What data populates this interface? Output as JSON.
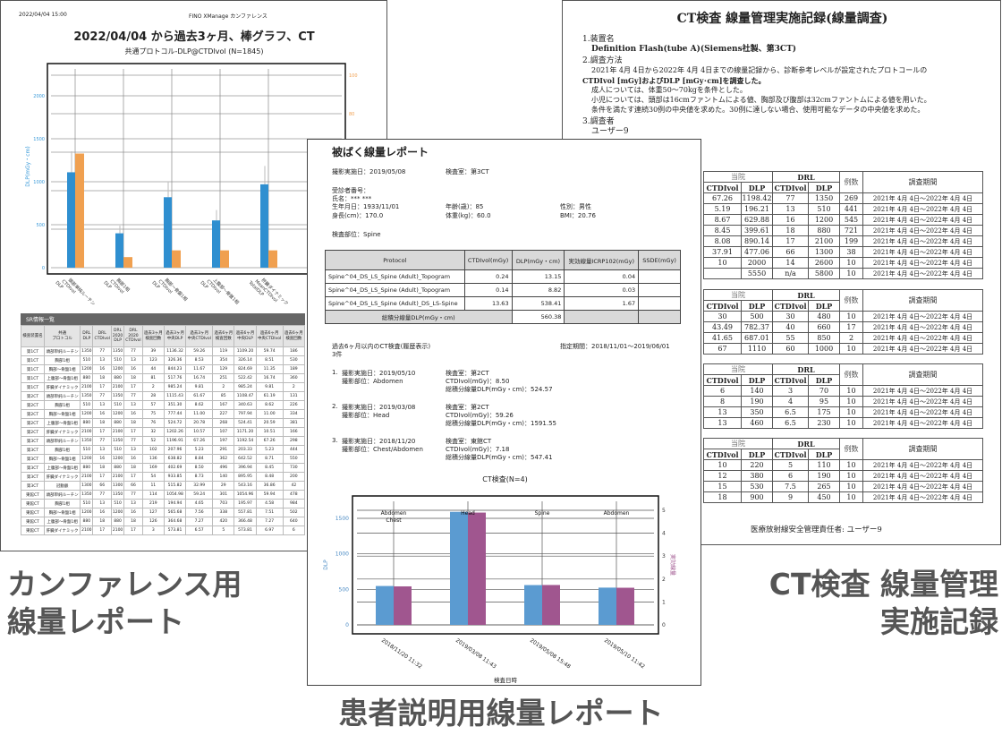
{
  "captions": {
    "left": [
      "カンファレンス用",
      "線量レポート"
    ],
    "right": [
      "CT検査 線量管理",
      "実施記録"
    ],
    "center": "患者説明用線量レポート"
  },
  "conference": {
    "timestamp": "2022/04/04 15:00",
    "app": "FINO XManage カンファレンス",
    "title": "2022/04/04 から過去3ヶ月、棒グラフ、CT",
    "subtitle": "共通プロトコル-DLP@CTDIvol (N=1845)",
    "sr_title": "SR情報一覧",
    "table_headers": [
      "検査装置名",
      "共通\nプロトコル",
      "DRL\nDLP",
      "DRL\nCTDIvol",
      "DRL\n2020\nDLP",
      "DRL\n2020\nCTDIvol",
      "過去3ヶ月\n検査回数",
      "過去3ヶ月\n中央DLP",
      "過去3ヶ月\n中央CTDIvol",
      "過去6ヶ月\n検査回数",
      "過去6ヶ月\n中央DLP",
      "過去6ヶ月\n中央CTDIvol",
      "過去6ヶ月\n検査回数"
    ],
    "table_rows": [
      [
        "第1CT",
        "頭部単純ルーチン",
        "1350",
        "77",
        "1350",
        "77",
        "39",
        "1136.32",
        "59.26",
        "119",
        "1109.20",
        "59.74",
        "186"
      ],
      [
        "第1CT",
        "胸部1相",
        "510",
        "13",
        "510",
        "13",
        "123",
        "326.36",
        "8.53",
        "354",
        "326.14",
        "8.51",
        "530"
      ],
      [
        "第1CT",
        "胸部〜骨盤1相",
        "1200",
        "16",
        "1200",
        "16",
        "44",
        "844.23",
        "11.67",
        "129",
        "824.69",
        "11.35",
        "189"
      ],
      [
        "第1CT",
        "上腹部〜骨盤1相",
        "880",
        "18",
        "880",
        "18",
        "81",
        "517.76",
        "16.74",
        "251",
        "522.42",
        "16.74",
        "360"
      ],
      [
        "第1CT",
        "肝臓ダイナミック",
        "2100",
        "17",
        "2100",
        "17",
        "2",
        "985.24",
        "9.81",
        "2",
        "985.24",
        "9.81",
        "2"
      ],
      [
        "第2CT",
        "頭部単純ルーチン",
        "1350",
        "77",
        "1350",
        "77",
        "28",
        "1115.43",
        "61.67",
        "85",
        "1108.47",
        "61.19",
        "131"
      ],
      [
        "第2CT",
        "胸部1相",
        "510",
        "13",
        "510",
        "13",
        "57",
        "351.30",
        "8.62",
        "167",
        "340.63",
        "8.62",
        "226"
      ],
      [
        "第2CT",
        "胸部〜骨盤1相",
        "1200",
        "16",
        "1200",
        "16",
        "75",
        "777.44",
        "11.00",
        "227",
        "797.94",
        "11.00",
        "334"
      ],
      [
        "第2CT",
        "上腹部〜骨盤1相",
        "880",
        "18",
        "880",
        "18",
        "76",
        "524.72",
        "20.78",
        "268",
        "524.41",
        "20.59",
        "381"
      ],
      [
        "第2CT",
        "肝臓ダイナミック",
        "2100",
        "17",
        "2100",
        "17",
        "32",
        "1202.26",
        "10.57",
        "107",
        "1171.20",
        "10.51",
        "166"
      ],
      [
        "第3CT",
        "頭部単純ルーチン",
        "1350",
        "77",
        "1350",
        "77",
        "52",
        "1196.91",
        "67.26",
        "197",
        "1192.54",
        "67.26",
        "298"
      ],
      [
        "第3CT",
        "胸部1相",
        "510",
        "13",
        "510",
        "13",
        "102",
        "207.96",
        "5.23",
        "291",
        "203.33",
        "5.23",
        "444"
      ],
      [
        "第3CT",
        "胸部〜骨盤1相",
        "1200",
        "16",
        "1200",
        "16",
        "136",
        "638.82",
        "8.84",
        "362",
        "642.52",
        "8.71",
        "550"
      ],
      [
        "第3CT",
        "上腹部〜骨盤1相",
        "880",
        "18",
        "880",
        "18",
        "169",
        "402.69",
        "8.50",
        "496",
        "396.94",
        "8.45",
        "730"
      ],
      [
        "第3CT",
        "肝臓ダイナミック",
        "2100",
        "17",
        "2100",
        "17",
        "54",
        "933.85",
        "8.73",
        "140",
        "895.95",
        "8.48",
        "200"
      ],
      [
        "第3CT",
        "冠動脈",
        "1300",
        "66",
        "1300",
        "66",
        "11",
        "515.82",
        "32.99",
        "29",
        "543.16",
        "36.86",
        "42"
      ],
      [
        "東館CT",
        "頭部単純ルーチン",
        "1350",
        "77",
        "1350",
        "77",
        "114",
        "1054.98",
        "59.24",
        "301",
        "1054.96",
        "59.94",
        "478"
      ],
      [
        "東館CT",
        "胸部1相",
        "510",
        "13",
        "510",
        "13",
        "219",
        "194.94",
        "4.65",
        "703",
        "195.97",
        "4.58",
        "984"
      ],
      [
        "東館CT",
        "胸部〜骨盤1相",
        "1200",
        "16",
        "1200",
        "16",
        "127",
        "565.68",
        "7.56",
        "338",
        "557.81",
        "7.51",
        "502"
      ],
      [
        "東館CT",
        "上腹部〜骨盤1相",
        "880",
        "18",
        "880",
        "18",
        "126",
        "364.68",
        "7.27",
        "420",
        "366.48",
        "7.27",
        "640"
      ],
      [
        "東館CT",
        "肝臓ダイナミック",
        "2100",
        "17",
        "2100",
        "17",
        "3",
        "573.81",
        "6.57",
        "5",
        "573.81",
        "6.97",
        "6"
      ]
    ]
  },
  "patient_report": {
    "title": "被ばく線量レポート",
    "exam_date": "撮影実施日：2019/05/08",
    "room": "検査室：第3CT",
    "patient_no": "受診者番号：",
    "name": "氏名：*** ***",
    "birth": "生年月日：1933/11/01",
    "age": "年齢(歳)：85",
    "sex": "性別：男性",
    "height": "身長(cm)：170.0",
    "weight": "体重(kg)：60.0",
    "bmi": "BMI：20.76",
    "body_part": "検査部位：Spine",
    "table_headers": [
      "Protocol",
      "CTDIvol(mGy)",
      "DLP(mGy・cm)",
      "実効線量ICRP102(mGy)",
      "SSDE(mGy)"
    ],
    "table_rows": [
      [
        "Spine^04_DS_LS_Spine (Adult)_Topogram",
        "0.24",
        "13.15",
        "0.04",
        ""
      ],
      [
        "Spine^04_DS_LS_Spine (Adult)_Topogram",
        "0.14",
        "8.82",
        "0.03",
        ""
      ],
      [
        "Spine^04_DS_LS_Spine (Adult)_DS_LS-Spine",
        "13.63",
        "538.41",
        "1.67",
        ""
      ]
    ],
    "total_label": "総積分線量DLP(mGy・cm)",
    "total_value": "560.38",
    "history_title": "過去6ヶ月以内のCT検査(履歴表示)",
    "history_count": "3件",
    "period": "指定期間：2018/11/01～2019/06/01",
    "history": [
      {
        "no": "1.",
        "date": "撮影実施日：2019/05/10",
        "part": "撮影部位：Abdomen",
        "room": "検査室：第2CT",
        "ctdi": "CTDIvol(mGy)：8.50",
        "dlp": "総積分線量DLP(mGy・cm)：524.57"
      },
      {
        "no": "2.",
        "date": "撮影実施日：2019/03/08",
        "part": "撮影部位：Head",
        "room": "検査室：第2CT",
        "ctdi": "CTDIvol(mGy)：59.26",
        "dlp": "総積分線量DLP(mGy・cm)：1591.55"
      },
      {
        "no": "3.",
        "date": "撮影実施日：2018/11/20",
        "part": "撮影部位：Chest/Abdomen",
        "room": "検査室：東館CT",
        "ctdi": "CTDIvol(mGy)：7.18",
        "dlp": "総積分線量DLP(mGy・cm)：547.41"
      }
    ]
  },
  "record": {
    "title": "CT検査 線量管理実施記録(線量調査)",
    "s1": "1.装置名",
    "device": "Definition Flash(tube A)(Siemens社製、第3CT)",
    "s2": "2.調査方法",
    "method": [
      "2021年 4月 4日から2022年 4月 4日までの線量記録から、診断参考レベルが設定されたプロトコールの",
      "CTDIvol [mGy]およびDLP [mGy･cm]を調査した。",
      "成人については、体重50～70kgを条件とした。",
      "小児については、頭部は16cmファントムによる値、胸部及び腹部は32cmファントムによる値を用いた。",
      "条件を満たす連続30例の中央値を求めた。30例に達しない場合、使用可能なデータの中央値を求めた。"
    ],
    "s3": "3.調査者",
    "investigator": "ユーザー9",
    "h_hospital": "当院",
    "h_drl": "DRL",
    "h_cases": "例数",
    "h_period": "調査期間",
    "h_ctdi": "CTDIvol",
    "h_dlp": "DLP",
    "period": "2021年 4月 4日～2022年 4月 4日",
    "tables": [
      [
        [
          "67.26",
          "1198.42",
          "77",
          "1350",
          "269"
        ],
        [
          "5.19",
          "196.21",
          "13",
          "510",
          "441"
        ],
        [
          "8.67",
          "629.88",
          "16",
          "1200",
          "545"
        ],
        [
          "8.45",
          "399.61",
          "18",
          "880",
          "721"
        ],
        [
          "8.08",
          "890.14",
          "17",
          "2100",
          "199"
        ],
        [
          "37.91",
          "477.06",
          "66",
          "1300",
          "38"
        ],
        [
          "10",
          "2000",
          "14",
          "2600",
          "10"
        ],
        [
          "",
          "5550",
          "n/a",
          "5800",
          "10"
        ]
      ],
      [
        [
          "30",
          "500",
          "30",
          "480",
          "10"
        ],
        [
          "43.49",
          "782.37",
          "40",
          "660",
          "17"
        ],
        [
          "41.65",
          "687.01",
          "55",
          "850",
          "2"
        ],
        [
          "67",
          "1110",
          "60",
          "1000",
          "10"
        ]
      ],
      [
        [
          "6",
          "140",
          "3",
          "70",
          "10"
        ],
        [
          "8",
          "190",
          "4",
          "95",
          "10"
        ],
        [
          "13",
          "350",
          "6.5",
          "175",
          "10"
        ],
        [
          "13",
          "460",
          "6.5",
          "230",
          "10"
        ]
      ],
      [
        [
          "10",
          "220",
          "5",
          "110",
          "10"
        ],
        [
          "12",
          "380",
          "6",
          "190",
          "10"
        ],
        [
          "15",
          "530",
          "7.5",
          "265",
          "10"
        ],
        [
          "18",
          "900",
          "9",
          "450",
          "10"
        ]
      ]
    ],
    "footer": "医療放射線安全管理責任者:  ユーザー9"
  },
  "chart_data": [
    {
      "type": "bar",
      "title": "共通プロトコル-DLP@CTDIvol (N=1845)",
      "categories": [
        "頭部単純ルーチン\nCTDIvol\nDLP",
        "胸部1相\nCTDIvol\nDLP",
        "胸部〜骨盤1相\nCTDIvol\nDLP",
        "上腹部〜骨盤1相\nCTDIvol\nDLP",
        "肝臓ダイナミック\nMeanCTDIvol\nTotalDLP"
      ],
      "ylabel": "DLP(mGy・cm)",
      "ylim": [
        0,
        2300
      ],
      "yticks": [
        0,
        500,
        1000,
        1500,
        2000
      ],
      "y2lim": [
        0,
        100
      ],
      "y2ticks": [
        80,
        100
      ],
      "series": [
        {
          "axis": "left",
          "values": [
            1110,
            400,
            820,
            550,
            970
          ],
          "color": "#2f8fd0"
        },
        {
          "axis": "right",
          "values": [
            59.3,
            5.5,
            9,
            9,
            9
          ],
          "color": "#f0a050"
        }
      ],
      "grid": true
    },
    {
      "type": "bar",
      "title": "CT検査(N=4)",
      "categories": [
        "2018/11/20 11:32",
        "2019/03/08 11:43",
        "2019/05/08 15:48",
        "2019/05/10 11:42"
      ],
      "annotations": [
        "Abdomen\nChest",
        "Head",
        "Spine",
        "Abdomen"
      ],
      "xlabel": "検査日時",
      "ylabel": "DLP",
      "y2label": "実効線量",
      "ylim": [
        0,
        1700
      ],
      "yticks": [
        0,
        500,
        1000,
        1500
      ],
      "y2lim": [
        0,
        5.3
      ],
      "y2ticks": [
        0,
        1,
        2,
        3,
        4,
        5
      ],
      "series": [
        {
          "axis": "left",
          "values": [
            547.41,
            1591.55,
            560.38,
            524.57
          ],
          "color": "#5b9bd1"
        },
        {
          "axis": "right",
          "values": [
            1.68,
            4.9,
            1.74,
            1.62
          ],
          "color": "#a0568f"
        }
      ],
      "grid": true
    }
  ]
}
